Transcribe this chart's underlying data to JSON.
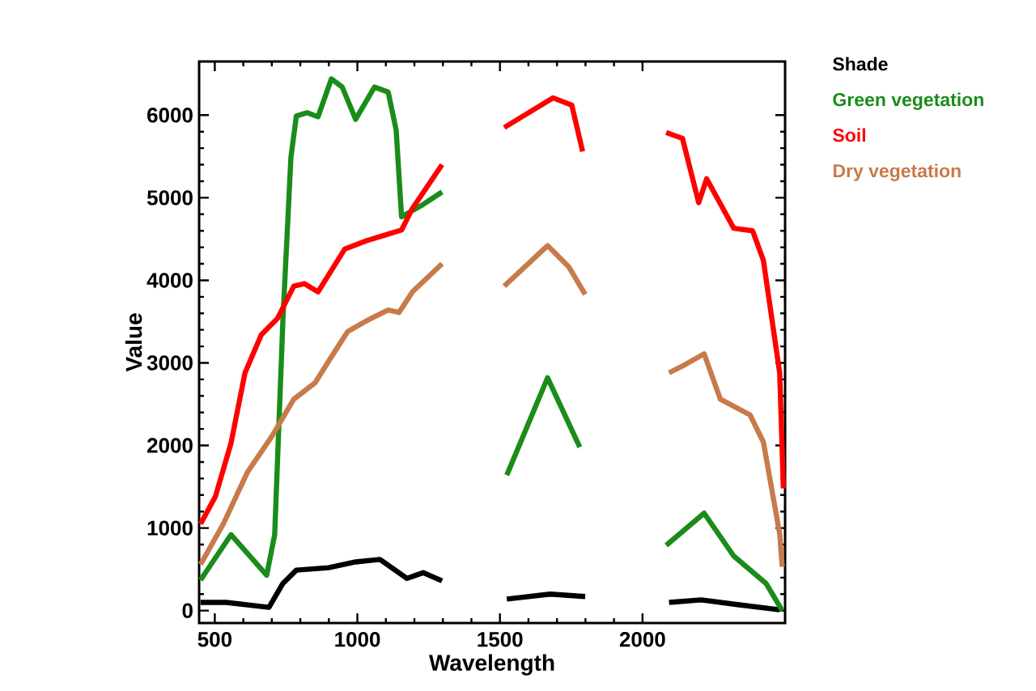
{
  "chart_data": {
    "type": "line",
    "xlabel": "Wavelength",
    "ylabel": "Value",
    "xlim": [
      445,
      2500
    ],
    "ylim": [
      -150,
      6650
    ],
    "xticks": [
      500,
      1000,
      1500,
      2000
    ],
    "yticks": [
      0,
      1000,
      2000,
      3000,
      4000,
      5000,
      6000
    ],
    "legend": "right",
    "series": [
      {
        "name": "Shade",
        "color": "#000000",
        "x": [
          450,
          540,
          690,
          739,
          786,
          899,
          994,
          1079,
          1174,
          1231,
          1297,
          1400,
          1524,
          1676,
          1799,
          1950,
          2093,
          2206,
          2339,
          2481
        ],
        "values": [
          100,
          100,
          40,
          330,
          490,
          520,
          590,
          620,
          390,
          460,
          360,
          null,
          140,
          200,
          170,
          null,
          100,
          130,
          70,
          10
        ]
      },
      {
        "name": "Green vegetation",
        "color": "#1a8c1a",
        "x": [
          450,
          557,
          682,
          710,
          739,
          767,
          786,
          824,
          862,
          909,
          947,
          994,
          1060,
          1108,
          1136,
          1155,
          1222,
          1297,
          1400,
          1524,
          1667,
          1780,
          1950,
          2083,
          2216,
          2320,
          2433,
          2490
        ],
        "values": [
          370,
          920,
          430,
          920,
          3530,
          5490,
          5990,
          6030,
          5980,
          6440,
          6340,
          5950,
          6340,
          6280,
          5820,
          4770,
          4900,
          5070,
          null,
          1640,
          2820,
          1980,
          null,
          790,
          1180,
          660,
          330,
          0
        ]
      },
      {
        "name": "Soil",
        "color": "#ff0000",
        "x": [
          450,
          502,
          557,
          606,
          663,
          720,
          777,
          814,
          862,
          909,
          956,
          1032,
          1089,
          1155,
          1193,
          1297,
          1400,
          1515,
          1686,
          1752,
          1790,
          1950,
          2083,
          2140,
          2197,
          2225,
          2320,
          2386,
          2424,
          2481,
          2494
        ],
        "values": [
          1050,
          1380,
          2030,
          2880,
          3340,
          3540,
          3930,
          3960,
          3860,
          4120,
          4380,
          4480,
          4540,
          4610,
          4870,
          5400,
          null,
          5850,
          6210,
          6120,
          5560,
          null,
          5790,
          5720,
          4940,
          5230,
          4630,
          4600,
          4240,
          2880,
          1480
        ]
      },
      {
        "name": "Dry vegetation",
        "color": "#c87a4a",
        "x": [
          450,
          530,
          615,
          700,
          777,
          852,
          899,
          966,
          1032,
          1108,
          1146,
          1193,
          1297,
          1400,
          1515,
          1667,
          1742,
          1799,
          1950,
          2093,
          2150,
          2216,
          2273,
          2377,
          2424,
          2481,
          2490
        ],
        "values": [
          560,
          1050,
          1680,
          2110,
          2560,
          2760,
          3020,
          3380,
          3510,
          3640,
          3610,
          3860,
          4200,
          null,
          3930,
          4420,
          4160,
          3830,
          null,
          2880,
          2980,
          3110,
          2560,
          2370,
          2040,
          930,
          530
        ]
      }
    ]
  }
}
